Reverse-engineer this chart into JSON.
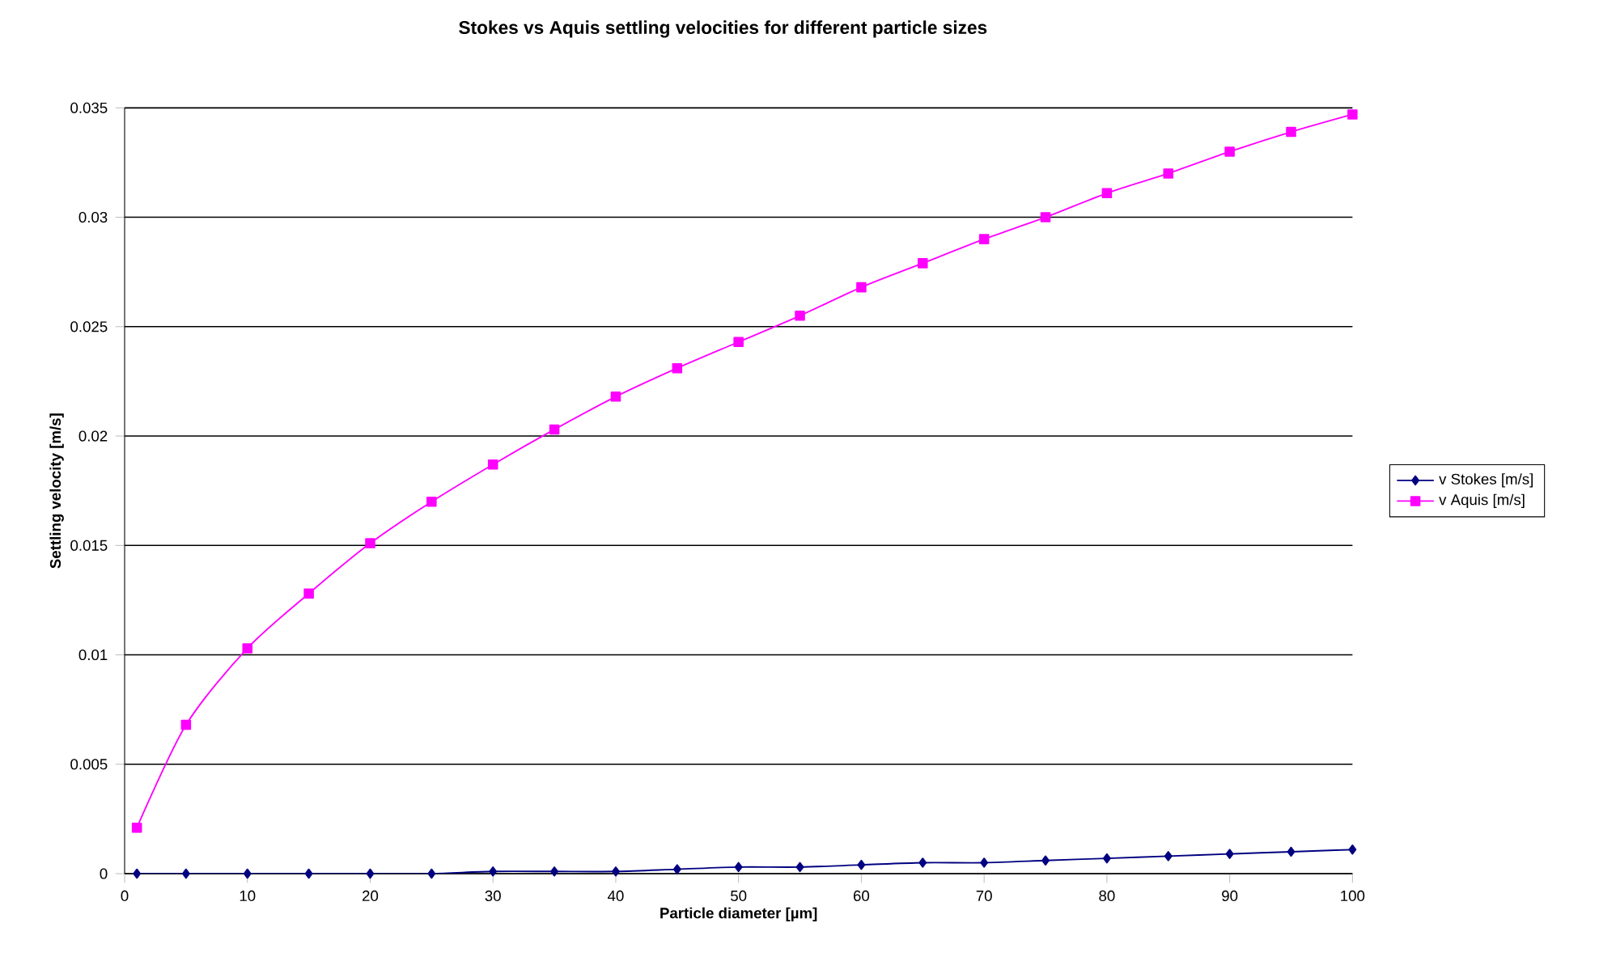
{
  "chart_data": {
    "type": "line",
    "title": "Stokes vs Aquis settling velocities for different particle sizes",
    "xlabel": "Particle diameter [µm]",
    "ylabel": "Settling velocity [m/s]",
    "x": [
      1,
      5,
      10,
      15,
      20,
      25,
      30,
      35,
      40,
      45,
      50,
      55,
      60,
      65,
      70,
      75,
      80,
      85,
      90,
      95,
      100
    ],
    "series": [
      {
        "name": "v Stokes [m/s]",
        "color": "#000080",
        "marker": "diamond",
        "values": [
          0,
          0,
          0,
          0,
          0,
          0,
          0.0001,
          0.0001,
          0.0001,
          0.0002,
          0.0003,
          0.0003,
          0.0004,
          0.0005,
          0.0005,
          0.0006,
          0.0007,
          0.0008,
          0.0009,
          0.001,
          0.0011
        ]
      },
      {
        "name": "v Aquis [m/s]",
        "color": "#ff00ff",
        "marker": "square",
        "values": [
          0.0021,
          0.0068,
          0.0103,
          0.0128,
          0.0151,
          0.017,
          0.0187,
          0.0203,
          0.0218,
          0.0231,
          0.0243,
          0.0255,
          0.0268,
          0.0279,
          0.029,
          0.03,
          0.0311,
          0.032,
          0.033,
          0.0339,
          0.0347
        ]
      }
    ],
    "xlim": [
      0,
      100
    ],
    "xticks": [
      0,
      10,
      20,
      30,
      40,
      50,
      60,
      70,
      80,
      90,
      100
    ],
    "ylim": [
      0,
      0.035
    ],
    "yticks": [
      0,
      0.005,
      0.01,
      0.015,
      0.02,
      0.025,
      0.03,
      0.035
    ],
    "grid": "y",
    "legend": "right",
    "line_style": "solid"
  }
}
